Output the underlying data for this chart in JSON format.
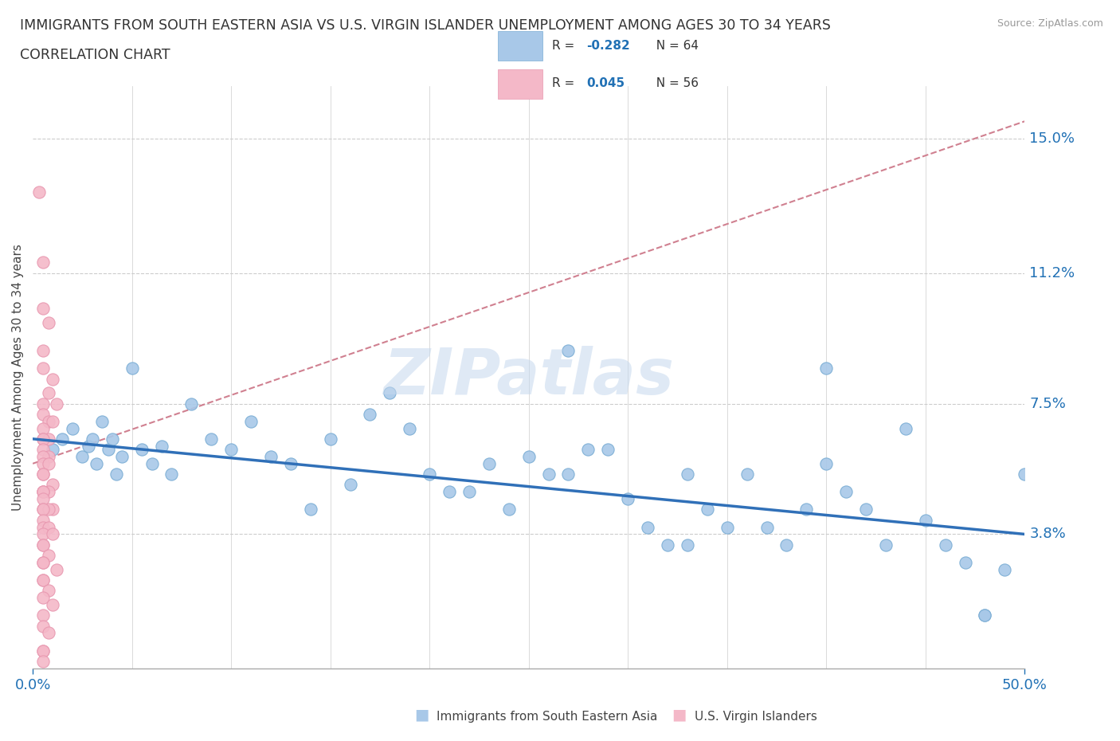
{
  "title_line1": "IMMIGRANTS FROM SOUTH EASTERN ASIA VS U.S. VIRGIN ISLANDER UNEMPLOYMENT AMONG AGES 30 TO 34 YEARS",
  "title_line2": "CORRELATION CHART",
  "source": "Source: ZipAtlas.com",
  "ylabel": "Unemployment Among Ages 30 to 34 years",
  "xlim": [
    0,
    50
  ],
  "ylim": [
    0,
    16.5
  ],
  "ytick_vals": [
    3.8,
    7.5,
    11.2,
    15.0
  ],
  "ytick_labels": [
    "3.8%",
    "7.5%",
    "11.2%",
    "15.0%"
  ],
  "xtick_vals": [
    0,
    50
  ],
  "xtick_labels": [
    "0.0%",
    "50.0%"
  ],
  "R_blue": -0.282,
  "N_blue": 64,
  "R_pink": 0.045,
  "N_pink": 56,
  "blue_color": "#a8c8e8",
  "blue_edge_color": "#7aadd4",
  "pink_color": "#f4b8c8",
  "pink_edge_color": "#e898b0",
  "trend_blue_color": "#3070b8",
  "trend_pink_color": "#d08090",
  "watermark": "ZIPatlas",
  "blue_trend_start_y": 6.5,
  "blue_trend_end_y": 3.8,
  "pink_trend_start_x": 0,
  "pink_trend_start_y": 5.8,
  "pink_trend_end_x": 50,
  "pink_trend_end_y": 15.5,
  "blue_scatter_x": [
    1.0,
    1.5,
    2.0,
    2.5,
    2.8,
    3.0,
    3.2,
    3.5,
    3.8,
    4.0,
    4.2,
    4.5,
    5.0,
    5.5,
    6.0,
    6.5,
    7.0,
    8.0,
    9.0,
    10.0,
    11.0,
    12.0,
    13.0,
    14.0,
    15.0,
    16.0,
    17.0,
    18.0,
    19.0,
    20.0,
    21.0,
    22.0,
    23.0,
    24.0,
    25.0,
    26.0,
    27.0,
    28.0,
    29.0,
    30.0,
    31.0,
    32.0,
    33.0,
    34.0,
    35.0,
    36.0,
    37.0,
    38.0,
    39.0,
    40.0,
    41.0,
    42.0,
    43.0,
    44.0,
    45.0,
    46.0,
    47.0,
    48.0,
    49.0,
    50.0,
    27.0,
    33.0,
    40.0,
    48.0
  ],
  "blue_scatter_y": [
    6.2,
    6.5,
    6.8,
    6.0,
    6.3,
    6.5,
    5.8,
    7.0,
    6.2,
    6.5,
    5.5,
    6.0,
    8.5,
    6.2,
    5.8,
    6.3,
    5.5,
    7.5,
    6.5,
    6.2,
    7.0,
    6.0,
    5.8,
    4.5,
    6.5,
    5.2,
    7.2,
    7.8,
    6.8,
    5.5,
    5.0,
    5.0,
    5.8,
    4.5,
    6.0,
    5.5,
    5.5,
    6.2,
    6.2,
    4.8,
    4.0,
    3.5,
    3.5,
    4.5,
    4.0,
    5.5,
    4.0,
    3.5,
    4.5,
    5.8,
    5.0,
    4.5,
    3.5,
    6.8,
    4.2,
    3.5,
    3.0,
    1.5,
    2.8,
    5.5,
    9.0,
    5.5,
    8.5,
    1.5
  ],
  "pink_scatter_x": [
    0.3,
    0.5,
    0.5,
    0.8,
    0.5,
    0.5,
    1.0,
    0.8,
    0.5,
    1.2,
    0.5,
    0.8,
    1.0,
    0.5,
    0.5,
    0.8,
    0.5,
    0.5,
    0.8,
    0.5,
    0.5,
    0.8,
    0.5,
    0.5,
    1.0,
    0.5,
    0.8,
    0.5,
    0.5,
    0.5,
    1.0,
    0.5,
    0.8,
    0.5,
    0.5,
    0.5,
    0.8,
    0.5,
    1.0,
    0.5,
    0.5,
    0.8,
    0.5,
    0.5,
    1.2,
    0.5,
    0.5,
    0.8,
    0.5,
    1.0,
    0.5,
    0.5,
    0.8,
    0.5,
    0.5,
    0.5
  ],
  "pink_scatter_y": [
    13.5,
    11.5,
    10.2,
    9.8,
    9.0,
    8.5,
    8.2,
    7.8,
    7.5,
    7.5,
    7.2,
    7.0,
    7.0,
    6.8,
    6.5,
    6.5,
    6.5,
    6.2,
    6.0,
    6.0,
    5.8,
    5.8,
    5.5,
    5.5,
    5.2,
    5.0,
    5.0,
    5.0,
    5.0,
    4.8,
    4.5,
    4.5,
    4.5,
    4.5,
    4.2,
    4.0,
    4.0,
    3.8,
    3.8,
    3.5,
    3.5,
    3.2,
    3.0,
    3.0,
    2.8,
    2.5,
    2.5,
    2.2,
    2.0,
    1.8,
    1.5,
    1.2,
    1.0,
    0.5,
    0.5,
    0.2
  ]
}
